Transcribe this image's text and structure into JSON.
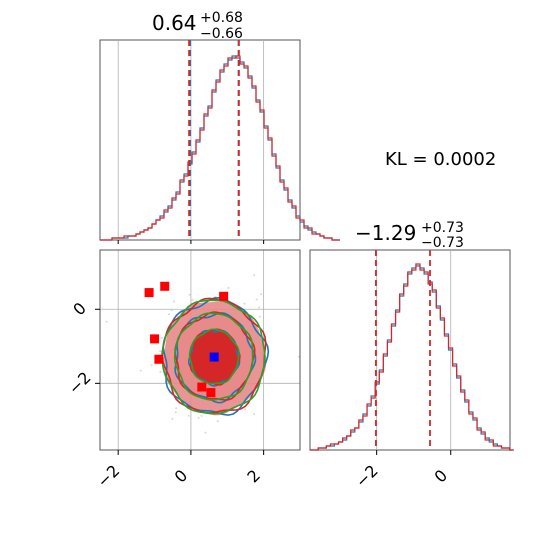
{
  "title_top": {
    "value": "0.64",
    "sup": "+0.68",
    "sub": "−0.66"
  },
  "title_right": {
    "value": "−1.29",
    "sup": "+0.73",
    "sub": "−0.73"
  },
  "kl_label": "KL = 0.0002",
  "x_ticks_bottom_left": [
    "−2",
    "0",
    "2"
  ],
  "y_ticks_left": [
    "0",
    "−2"
  ],
  "x_ticks_bottom_right": [
    "−2",
    "0"
  ],
  "colors": {
    "blue": "#1f77b4",
    "red": "#d62728",
    "green": "#2ca02c",
    "fill_red": "#d62728",
    "fill_pink": "#e88a8a",
    "grid": "#b0b0b0",
    "scatter": "#d8d8d8"
  },
  "chart_data": {
    "type": "corner",
    "x1": {
      "range": [
        -2.5,
        3.0
      ],
      "median": 0.64,
      "quantiles_blue": [
        -0.02,
        1.31
      ],
      "quantiles_red": [
        -0.05,
        1.32
      ],
      "ticks": [
        -2,
        0,
        2
      ]
    },
    "x2": {
      "range": [
        -3.8,
        1.6
      ],
      "median": -1.29,
      "quantiles": [
        -2.02,
        -0.56
      ],
      "ticks": [
        -2,
        0
      ]
    },
    "hist_x1": {
      "edges_start": -2.5,
      "bin_width": 0.11,
      "blue": [
        0,
        0,
        0,
        1,
        1,
        1,
        1,
        2,
        2,
        3,
        4,
        5,
        6,
        8,
        10,
        12,
        14,
        17,
        20,
        24,
        29,
        33,
        38,
        44,
        49,
        56,
        62,
        67,
        74,
        80,
        84,
        88,
        90,
        92,
        91,
        89,
        86,
        82,
        76,
        70,
        64,
        57,
        50,
        43,
        36,
        30,
        25,
        20,
        16,
        12,
        9,
        7,
        5,
        4,
        3,
        2,
        1,
        1,
        0,
        0
      ],
      "red": [
        0,
        0,
        0,
        1,
        1,
        1,
        2,
        2,
        2,
        3,
        4,
        5,
        6,
        8,
        10,
        11,
        15,
        16,
        21,
        23,
        30,
        32,
        39,
        43,
        50,
        55,
        63,
        66,
        75,
        79,
        85,
        87,
        91,
        91,
        92,
        88,
        87,
        81,
        77,
        69,
        65,
        56,
        51,
        42,
        37,
        29,
        26,
        19,
        17,
        11,
        10,
        6,
        6,
        3,
        3,
        2,
        1,
        1,
        0,
        0
      ]
    },
    "hist_x2": {
      "edges_start": -3.8,
      "bin_width": 0.11,
      "blue": [
        0,
        0,
        1,
        1,
        2,
        2,
        3,
        4,
        5,
        7,
        9,
        11,
        14,
        18,
        22,
        27,
        33,
        40,
        47,
        55,
        62,
        70,
        77,
        83,
        88,
        91,
        92,
        91,
        88,
        84,
        79,
        72,
        65,
        58,
        50,
        43,
        36,
        30,
        24,
        19,
        15,
        11,
        8,
        6,
        4,
        3,
        2,
        1,
        1,
        0
      ],
      "red": [
        0,
        0,
        1,
        1,
        2,
        3,
        3,
        4,
        6,
        7,
        10,
        11,
        15,
        17,
        23,
        26,
        34,
        39,
        48,
        54,
        63,
        69,
        78,
        82,
        89,
        90,
        93,
        90,
        89,
        83,
        80,
        71,
        66,
        57,
        51,
        42,
        37,
        29,
        25,
        18,
        16,
        10,
        9,
        5,
        5,
        2,
        2,
        1,
        1,
        0
      ]
    },
    "contours_2d": {
      "center": [
        0.64,
        -1.29
      ],
      "sigma": [
        0.67,
        0.73
      ],
      "levels_sigma": [
        1.0,
        1.6,
        2.1
      ],
      "series": [
        "blue",
        "red",
        "green"
      ]
    },
    "markers": [
      {
        "color": "red",
        "x": -1.15,
        "y": 0.45
      },
      {
        "color": "red",
        "x": -0.72,
        "y": 0.62
      },
      {
        "color": "red",
        "x": 0.9,
        "y": 0.35
      },
      {
        "color": "red",
        "x": -1.0,
        "y": -0.8
      },
      {
        "color": "red",
        "x": -0.88,
        "y": -1.35
      },
      {
        "color": "red",
        "x": 0.3,
        "y": -2.1
      },
      {
        "color": "red",
        "x": 0.55,
        "y": -2.25
      },
      {
        "color": "blue",
        "x": 0.64,
        "y": -1.29
      }
    ]
  }
}
